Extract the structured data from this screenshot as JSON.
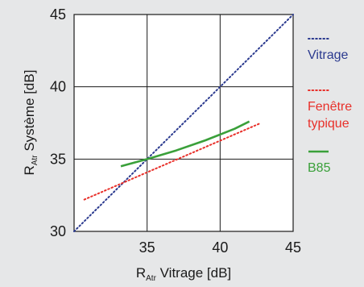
{
  "chart_data": {
    "type": "line",
    "xlabel": {
      "main": "R",
      "sub": "Atr",
      "rest": " Vitrage [dB]"
    },
    "ylabel": {
      "main": "R",
      "sub": "Atr",
      "rest": " Système [dB]"
    },
    "xlim": [
      30,
      45
    ],
    "ylim": [
      30,
      45
    ],
    "xticks": [
      35,
      40,
      45
    ],
    "yticks": [
      30,
      35,
      40,
      45
    ],
    "grid": true,
    "legend_position": "right",
    "series": [
      {
        "name": "Vitrage",
        "name_lines": [
          "Vitrage"
        ],
        "color": "#2b3a8f",
        "style": "dotted",
        "x": [
          30,
          45
        ],
        "y": [
          30,
          45
        ]
      },
      {
        "name": "Fenêtre typique",
        "name_lines": [
          "Fenêtre",
          "typique"
        ],
        "color": "#e8302a",
        "style": "dotted",
        "x": [
          30.7,
          42.8
        ],
        "y": [
          32.2,
          37.5
        ]
      },
      {
        "name": "B85",
        "name_lines": [
          "B85"
        ],
        "color": "#3aa03a",
        "style": "solid",
        "x": [
          33.2,
          35,
          37,
          39,
          41,
          42
        ],
        "y": [
          34.5,
          35,
          35.6,
          36.3,
          37.1,
          37.6
        ]
      }
    ]
  }
}
